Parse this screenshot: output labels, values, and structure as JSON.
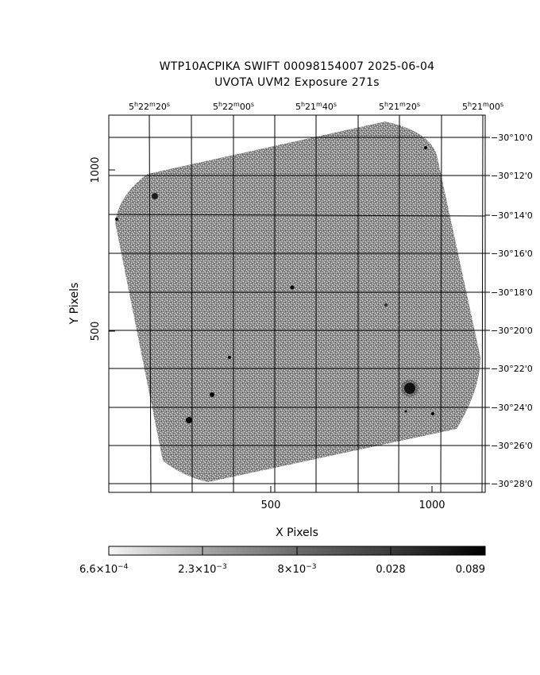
{
  "header": {
    "line1": "WTP10ACPIKA SWIFT 00098154007 2025-06-04",
    "line2": "UVOTA UVM2 Exposure        271s"
  },
  "axes": {
    "xlabel": "X Pixels",
    "ylabel": "Y Pixels",
    "x_ticks": [
      "500",
      "1000"
    ],
    "y_ticks": [
      "1000",
      "500"
    ],
    "ra_ticks": [
      {
        "h": "5",
        "m": "22",
        "s": "20"
      },
      {
        "h": "5",
        "m": "22",
        "s": "00"
      },
      {
        "h": "5",
        "m": "21",
        "s": "40"
      },
      {
        "h": "5",
        "m": "21",
        "s": "20"
      },
      {
        "h": "5",
        "m": "21",
        "s": "00"
      }
    ],
    "dec_ticks": [
      "−30°10'0",
      "−30°12'0",
      "−30°14'0",
      "−30°16'0",
      "−30°18'0",
      "−30°20'0",
      "−30°22'0",
      "−30°24'0",
      "−30°26'0",
      "−30°28'0"
    ]
  },
  "colorbar": {
    "labels": [
      {
        "mant": "6.6×10",
        "exp": "−4"
      },
      {
        "mant": "2.3×10",
        "exp": "−3"
      },
      {
        "mant": "8×10",
        "exp": "−3"
      },
      {
        "mant": "0.028",
        "exp": ""
      },
      {
        "mant": "0.089",
        "exp": ""
      }
    ],
    "colors": {
      "low": "#f5f5f5",
      "high": "#000000"
    }
  },
  "image": {
    "background": "#ffffff",
    "noise_colors": [
      "#6a6a6a",
      "#8a8a8a",
      "#9a9a9a",
      "#4a4a4a",
      "#b0b0b0"
    ]
  }
}
